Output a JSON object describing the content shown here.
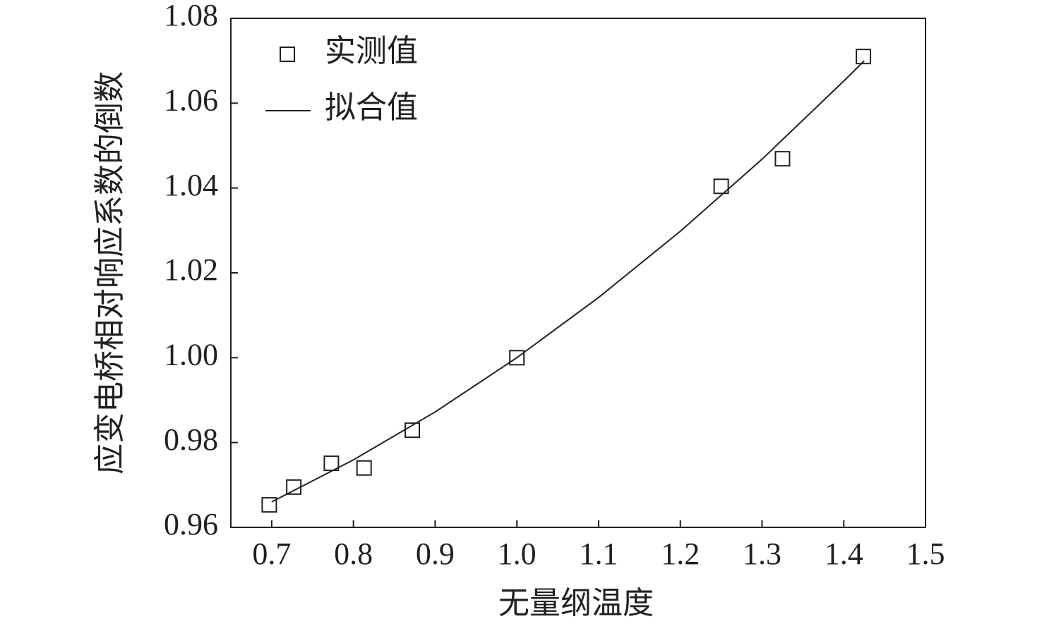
{
  "chart_data": {
    "type": "scatter",
    "xlabel": "无量纲温度",
    "ylabel": "应变电桥相对响应系数的倒数",
    "xlim": [
      0.65,
      1.5
    ],
    "xticks": [
      {
        "value": 0.7,
        "label": "0.7"
      },
      {
        "value": 0.8,
        "label": "0.8"
      },
      {
        "value": 0.9,
        "label": "0.9"
      },
      {
        "value": 1.0,
        "label": "1.0"
      },
      {
        "value": 1.1,
        "label": "1.1"
      },
      {
        "value": 1.2,
        "label": "1.2"
      },
      {
        "value": 1.3,
        "label": "1.3"
      },
      {
        "value": 1.4,
        "label": "1.4"
      },
      {
        "value": 1.5,
        "label": "1.5"
      }
    ],
    "ylim": [
      0.96,
      1.08
    ],
    "yticks": [
      {
        "value": 0.96,
        "label": "0.96"
      },
      {
        "value": 0.98,
        "label": "0.98"
      },
      {
        "value": 1.0,
        "label": "1.00"
      },
      {
        "value": 1.02,
        "label": "1.02"
      },
      {
        "value": 1.04,
        "label": "1.04"
      },
      {
        "value": 1.06,
        "label": "1.06"
      },
      {
        "value": 1.08,
        "label": "1.08"
      }
    ],
    "legend": "upper-left",
    "series": [
      {
        "name": "实测值",
        "type": "scatter",
        "color": "#231f20",
        "x": [
          0.697,
          0.727,
          0.773,
          0.813,
          0.872,
          1.0,
          1.25,
          1.325,
          1.424
        ],
        "values": [
          0.9653,
          0.9695,
          0.9751,
          0.974,
          0.9829,
          1.0,
          1.0404,
          1.0469,
          1.071
        ]
      },
      {
        "name": "拟合值",
        "type": "line",
        "color": "#231f20",
        "x": [
          0.7,
          0.8,
          0.9,
          1.0,
          1.1,
          1.2,
          1.3,
          1.4,
          1.425
        ],
        "values": [
          0.966,
          0.9759,
          0.9872,
          1.0,
          1.0142,
          1.0298,
          1.0468,
          1.0652,
          1.07
        ]
      }
    ]
  }
}
